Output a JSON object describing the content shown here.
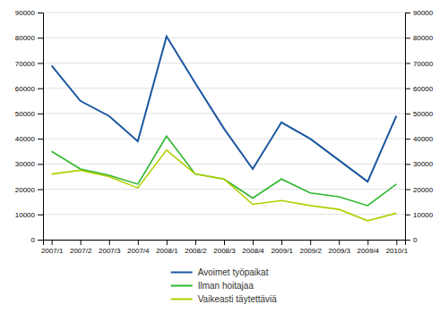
{
  "chart_data": {
    "type": "line",
    "categories": [
      "2007/1",
      "2007/2",
      "2007/3",
      "2007/4",
      "2008/1",
      "2008/2",
      "2008/3",
      "2008/4",
      "2009/1",
      "2009/2",
      "2009/3",
      "2009/4",
      "2010/1"
    ],
    "series": [
      {
        "name": "Avoimet työpaikat",
        "color": "#1a56a0",
        "values": [
          69000,
          55000,
          49000,
          39000,
          80500,
          62000,
          44000,
          28000,
          46500,
          40000,
          31500,
          23000,
          49000
        ]
      },
      {
        "name": "Ilman hoitajaa",
        "color": "#2db52d",
        "values": [
          35000,
          28000,
          25500,
          22000,
          41000,
          26000,
          24000,
          16500,
          24000,
          18500,
          17000,
          13500,
          22000
        ]
      },
      {
        "name": "Vaikeasti täytettäviä",
        "color": "#b0d000",
        "values": [
          26000,
          27500,
          25000,
          20500,
          35500,
          26000,
          24000,
          14000,
          15500,
          13500,
          12000,
          7500,
          10500
        ]
      }
    ],
    "ylim": [
      0,
      90000
    ],
    "yticks": [
      0,
      10000,
      20000,
      30000,
      40000,
      50000,
      60000,
      70000,
      80000,
      90000
    ],
    "y2lim": [
      0,
      90000
    ],
    "y2ticks": [
      0,
      10000,
      20000,
      30000,
      40000,
      50000,
      60000,
      70000,
      80000,
      90000
    ],
    "grid": true,
    "legend": "bottom"
  }
}
